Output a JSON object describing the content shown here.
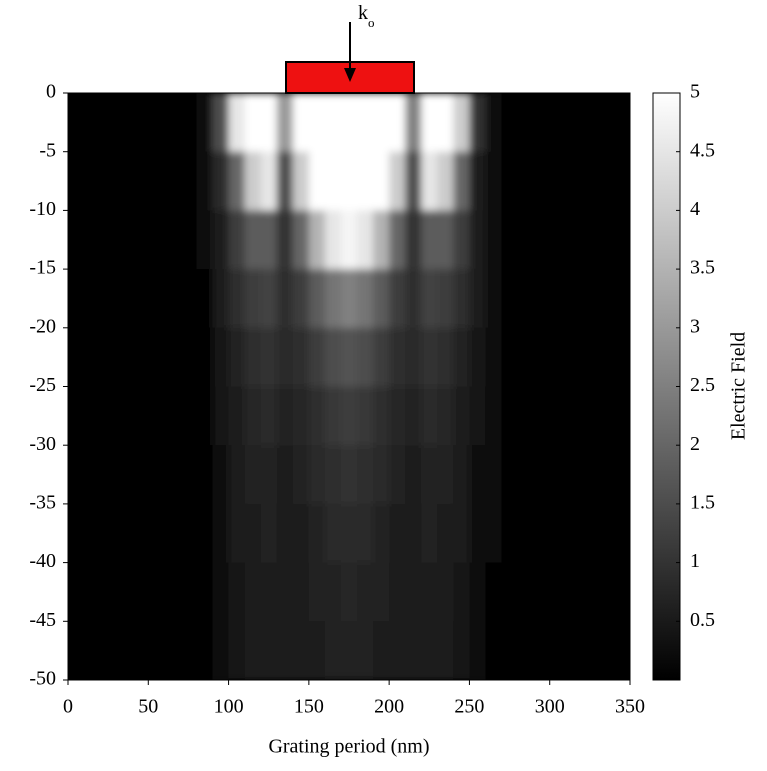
{
  "chart_data": {
    "type": "heatmap",
    "xlabel": "Grating period (nm)",
    "colorbar_label": "Electric Field",
    "annotation": {
      "text": "k",
      "subscript": "o"
    },
    "xlim": [
      0,
      350
    ],
    "xticks": [
      0,
      50,
      100,
      150,
      200,
      250,
      300,
      350
    ],
    "ylim": [
      -50,
      0
    ],
    "yticks": [
      0,
      -5,
      -10,
      -15,
      -20,
      -25,
      -30,
      -35,
      -40,
      -45,
      -50
    ],
    "clim": [
      0,
      5
    ],
    "cticks": [
      0.5,
      1,
      1.5,
      2,
      2.5,
      3,
      3.5,
      4,
      4.5,
      5
    ],
    "colormap": "gray",
    "x": [
      5,
      15,
      25,
      35,
      45,
      55,
      65,
      75,
      85,
      95,
      105,
      115,
      125,
      135,
      145,
      155,
      165,
      175,
      185,
      195,
      205,
      215,
      225,
      235,
      245,
      255,
      265,
      275,
      285,
      295,
      305,
      315,
      325,
      335,
      345
    ],
    "y": [
      -2.5,
      -7.5,
      -12.5,
      -17.5,
      -22.5,
      -27.5,
      -32.5,
      -37.5,
      -42.5,
      -47.5
    ],
    "z": [
      [
        0.05,
        0.05,
        0.05,
        0.05,
        0.05,
        0.05,
        0.05,
        0.05,
        0.2,
        1.5,
        4.5,
        5,
        5,
        3,
        5,
        5,
        5,
        5,
        5,
        5,
        5,
        2.5,
        5,
        5,
        4,
        1,
        0.3,
        0.05,
        0.05,
        0.05,
        0.05,
        0.05,
        0.05,
        0.05,
        0.05
      ],
      [
        0.05,
        0.05,
        0.05,
        0.05,
        0.05,
        0.05,
        0.05,
        0.05,
        0.15,
        0.8,
        2,
        4,
        4.5,
        1.5,
        4,
        5,
        5,
        5,
        5,
        5,
        4,
        1.5,
        4.5,
        4,
        2,
        0.6,
        0.2,
        0.05,
        0.05,
        0.05,
        0.05,
        0.05,
        0.05,
        0.05,
        0.05
      ],
      [
        0.05,
        0.05,
        0.05,
        0.05,
        0.05,
        0.05,
        0.05,
        0.05,
        0.15,
        0.6,
        1.2,
        1.8,
        1.8,
        1,
        2,
        3.5,
        4.5,
        4.8,
        4.5,
        3.5,
        2,
        1,
        1.8,
        1.8,
        1.2,
        0.5,
        0.2,
        0.05,
        0.05,
        0.05,
        0.05,
        0.05,
        0.05,
        0.05,
        0.05
      ],
      [
        0.05,
        0.05,
        0.05,
        0.05,
        0.05,
        0.05,
        0.05,
        0.05,
        0.1,
        0.5,
        0.9,
        1.2,
        1.3,
        0.9,
        1.2,
        1.8,
        2.3,
        2.5,
        2.3,
        1.8,
        1.2,
        0.9,
        1.3,
        1.2,
        0.9,
        0.5,
        0.2,
        0.05,
        0.05,
        0.05,
        0.05,
        0.05,
        0.05,
        0.05,
        0.05
      ],
      [
        0.05,
        0.05,
        0.05,
        0.05,
        0.05,
        0.05,
        0.05,
        0.05,
        0.1,
        0.4,
        0.7,
        0.9,
        1,
        0.8,
        0.9,
        1.2,
        1.5,
        1.6,
        1.5,
        1.2,
        0.9,
        0.8,
        1,
        0.9,
        0.7,
        0.4,
        0.2,
        0.05,
        0.05,
        0.05,
        0.05,
        0.05,
        0.05,
        0.05,
        0.05
      ],
      [
        0.05,
        0.05,
        0.05,
        0.05,
        0.05,
        0.05,
        0.05,
        0.05,
        0.1,
        0.35,
        0.6,
        0.75,
        0.8,
        0.7,
        0.75,
        0.9,
        1.1,
        1.2,
        1.1,
        0.9,
        0.75,
        0.7,
        0.8,
        0.75,
        0.6,
        0.35,
        0.15,
        0.05,
        0.05,
        0.05,
        0.05,
        0.05,
        0.05,
        0.05,
        0.05
      ],
      [
        0.05,
        0.05,
        0.05,
        0.05,
        0.05,
        0.05,
        0.05,
        0.05,
        0.1,
        0.3,
        0.5,
        0.65,
        0.7,
        0.6,
        0.65,
        0.8,
        0.9,
        1,
        0.9,
        0.8,
        0.65,
        0.6,
        0.7,
        0.65,
        0.5,
        0.3,
        0.15,
        0.05,
        0.05,
        0.05,
        0.05,
        0.05,
        0.05,
        0.05,
        0.05
      ],
      [
        0.05,
        0.05,
        0.05,
        0.05,
        0.05,
        0.05,
        0.05,
        0.05,
        0.1,
        0.3,
        0.5,
        0.6,
        0.65,
        0.55,
        0.6,
        0.7,
        0.8,
        0.85,
        0.8,
        0.7,
        0.6,
        0.55,
        0.65,
        0.6,
        0.5,
        0.3,
        0.15,
        0.05,
        0.05,
        0.05,
        0.05,
        0.05,
        0.05,
        0.05,
        0.05
      ],
      [
        0.05,
        0.05,
        0.05,
        0.05,
        0.05,
        0.05,
        0.05,
        0.05,
        0.1,
        0.25,
        0.45,
        0.55,
        0.6,
        0.5,
        0.55,
        0.65,
        0.7,
        0.75,
        0.7,
        0.65,
        0.55,
        0.5,
        0.6,
        0.55,
        0.45,
        0.25,
        0.1,
        0.05,
        0.05,
        0.05,
        0.05,
        0.05,
        0.05,
        0.05,
        0.05
      ],
      [
        0.05,
        0.05,
        0.05,
        0.05,
        0.05,
        0.05,
        0.05,
        0.05,
        0.1,
        0.25,
        0.4,
        0.5,
        0.55,
        0.5,
        0.5,
        0.6,
        0.65,
        0.7,
        0.65,
        0.6,
        0.5,
        0.5,
        0.55,
        0.5,
        0.4,
        0.25,
        0.1,
        0.05,
        0.05,
        0.05,
        0.05,
        0.05,
        0.05,
        0.05,
        0.05
      ]
    ]
  }
}
